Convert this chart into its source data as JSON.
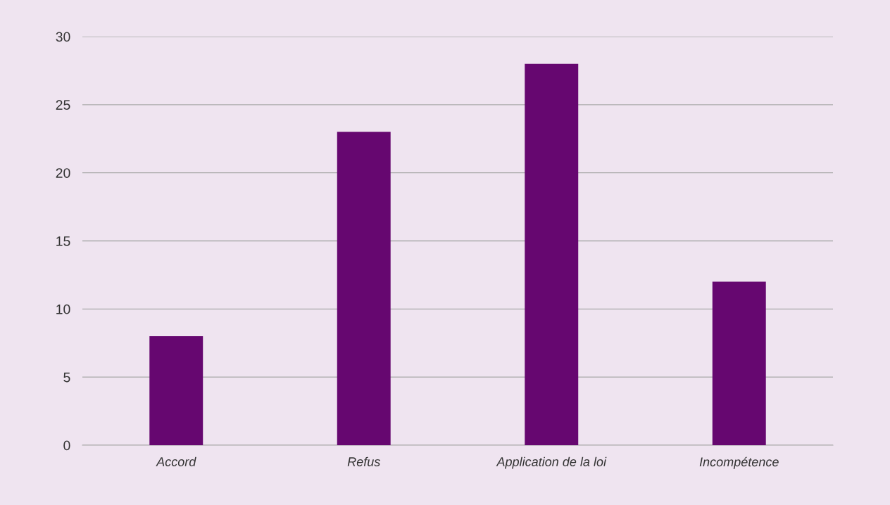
{
  "chart_data": {
    "type": "bar",
    "categories": [
      "Accord",
      "Refus",
      "Application de la loi",
      "Incompétence"
    ],
    "values": [
      8,
      23,
      28,
      12
    ],
    "color": "#660770",
    "ylim": [
      0,
      30
    ],
    "yticks": [
      0,
      5,
      10,
      15,
      20,
      25,
      30
    ],
    "grid": "y"
  }
}
